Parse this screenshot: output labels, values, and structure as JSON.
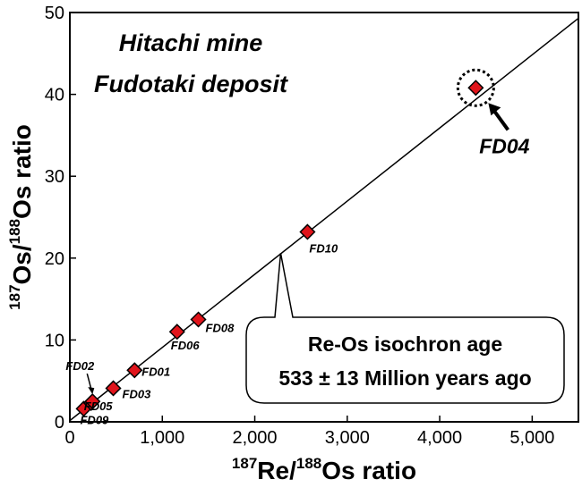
{
  "chart_data": {
    "type": "scatter",
    "title": [
      "Hitachi mine",
      "Fudotaki deposit"
    ],
    "xlabel": {
      "sup1": "187",
      "base1": "Re/",
      "sup2": "188",
      "base2": "Os ratio"
    },
    "ylabel": {
      "sup1": "187",
      "base1": "Os/",
      "sup2": "188",
      "base2": "Os ratio"
    },
    "xlim": [
      0,
      5500
    ],
    "ylim": [
      0,
      50
    ],
    "x_ticks": [
      0,
      1000,
      2000,
      3000,
      4000,
      5000
    ],
    "x_tick_labels": [
      "0",
      "1,000",
      "2,000",
      "3,000",
      "4,000",
      "5,000"
    ],
    "y_ticks": [
      0,
      10,
      20,
      30,
      40,
      50
    ],
    "y_tick_labels": [
      "0",
      "10",
      "20",
      "30",
      "40",
      "50"
    ],
    "point_color": "#e0141b",
    "points": [
      {
        "name": "FD09",
        "x": 150,
        "y": 1.6
      },
      {
        "name": "FD05",
        "x": 230,
        "y": 2.3
      },
      {
        "name": "FD02",
        "x": 245,
        "y": 2.5
      },
      {
        "name": "FD03",
        "x": 470,
        "y": 4.1
      },
      {
        "name": "FD01",
        "x": 700,
        "y": 6.3
      },
      {
        "name": "FD06",
        "x": 1160,
        "y": 11.0
      },
      {
        "name": "FD08",
        "x": 1390,
        "y": 12.5
      },
      {
        "name": "FD10",
        "x": 2570,
        "y": 23.2
      },
      {
        "name": "FD04",
        "x": 4390,
        "y": 40.8
      }
    ],
    "isochron_line": {
      "x": [
        0,
        5500
      ],
      "y": [
        0.15,
        49.3
      ]
    },
    "annotation": {
      "lines": [
        "Re-Os isochron age",
        "533 ± 13 Million years ago"
      ],
      "pointer_to": {
        "x": 2280,
        "y": 20.6
      }
    },
    "highlight_point": "FD04"
  }
}
